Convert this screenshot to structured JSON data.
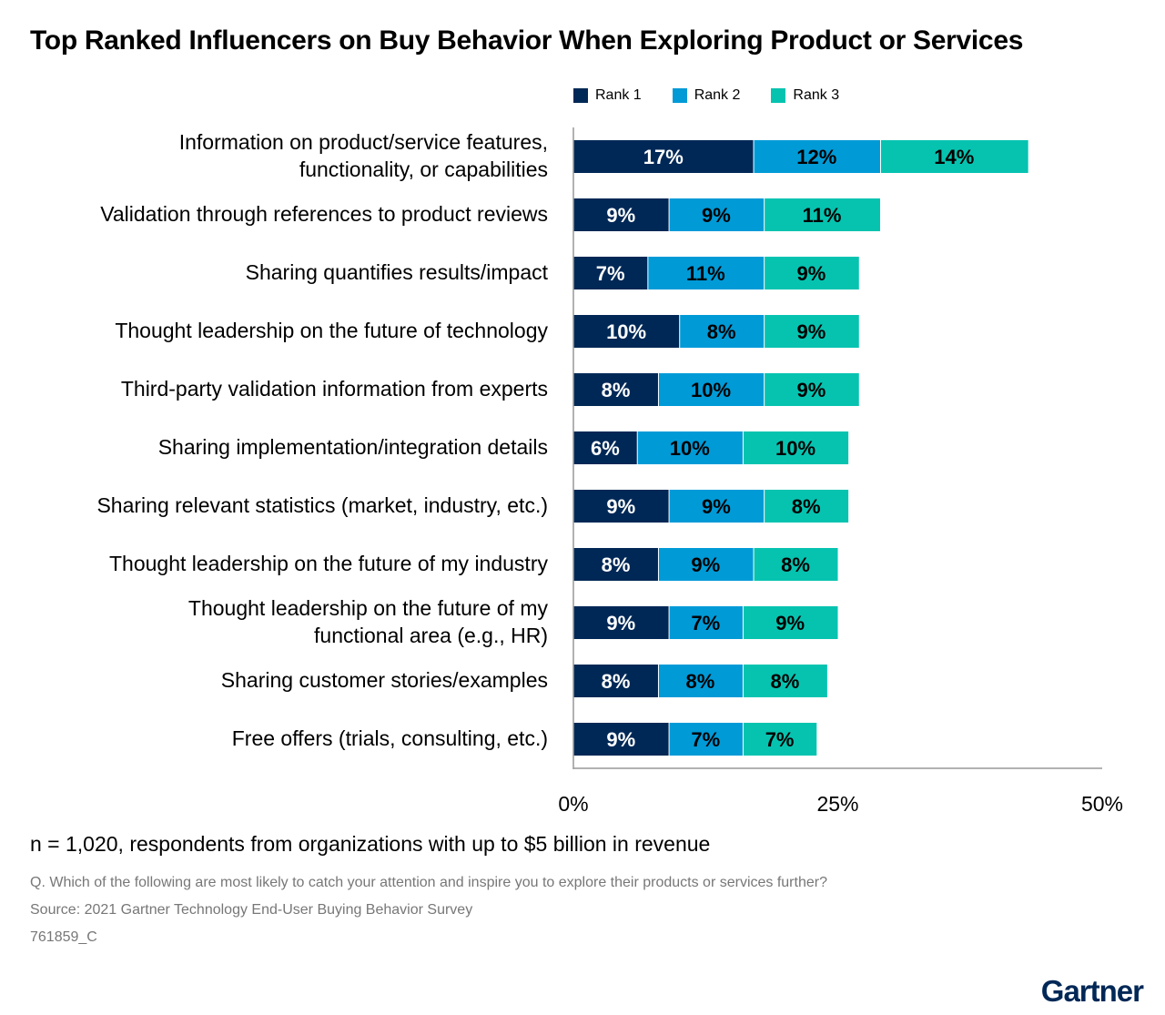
{
  "title": "Top Ranked Influencers on Buy Behavior When Exploring Product or Services",
  "chart_data": {
    "type": "bar",
    "orientation": "horizontal",
    "stacked": true,
    "title": "Top Ranked Influencers on Buy Behavior When Exploring Product or Services",
    "categories": [
      [
        "Information on product/service features,",
        "functionality, or capabilities"
      ],
      [
        "Validation through references to product reviews"
      ],
      [
        "Sharing quantifies results/impact"
      ],
      [
        "Thought leadership on the future of technology"
      ],
      [
        "Third-party validation information from experts"
      ],
      [
        "Sharing implementation/integration details"
      ],
      [
        "Sharing relevant statistics (market, industry, etc.)"
      ],
      [
        "Thought leadership on the future of my industry"
      ],
      [
        "Thought leadership on the future of my",
        "functional area (e.g., HR)"
      ],
      [
        "Sharing customer stories/examples"
      ],
      [
        "Free offers (trials, consulting, etc.)"
      ]
    ],
    "series": [
      {
        "name": "Rank 1",
        "color": "#002856",
        "label_color": "#ffffff",
        "values": [
          17,
          9,
          7,
          10,
          8,
          6,
          9,
          8,
          9,
          8,
          9
        ]
      },
      {
        "name": "Rank 2",
        "color": "#009ad7",
        "label_color": "#000000",
        "values": [
          12,
          9,
          11,
          8,
          10,
          10,
          9,
          9,
          7,
          8,
          7
        ]
      },
      {
        "name": "Rank 3",
        "color": "#06c3b0",
        "label_color": "#000000",
        "values": [
          14,
          11,
          9,
          9,
          9,
          10,
          8,
          8,
          9,
          8,
          7
        ]
      }
    ],
    "xlim": [
      0,
      50
    ],
    "xticks": [
      "0%",
      "25%",
      "50%"
    ],
    "xtick_values": [
      0,
      25,
      50
    ],
    "value_suffix": "%",
    "legend": "top",
    "grid": false
  },
  "note": "n = 1,020, respondents from organizations with up to $5 billion in revenue",
  "question": "Q. Which of the following are most likely to catch your attention and inspire you to explore their products or services further?",
  "source": "Source: 2021 Gartner Technology End-User Buying Behavior Survey",
  "code": "761859_C",
  "logo": "Gartner"
}
